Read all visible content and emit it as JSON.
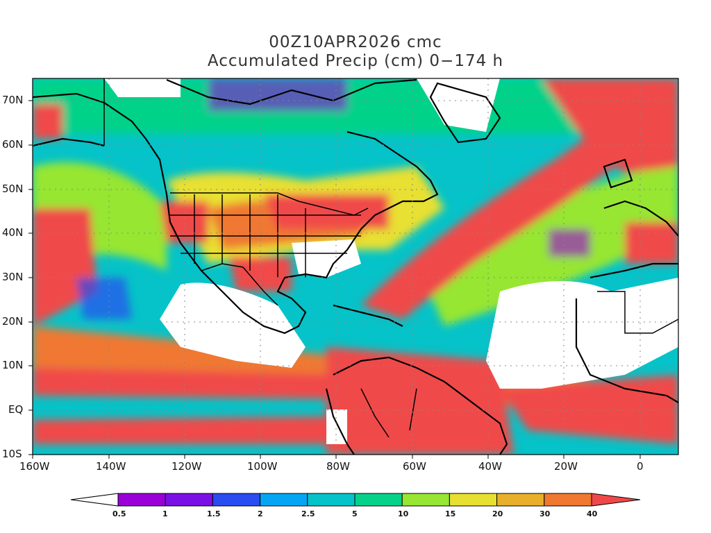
{
  "title": {
    "line1": "00Z10APR2026 cmc",
    "line2": "Accumulated Precip (cm) 0−174 h"
  },
  "map": {
    "projection": "lat-lon",
    "lon_range": [
      -160,
      10
    ],
    "lat_range": [
      -10,
      75
    ],
    "lat_labels": [
      "70N",
      "60N",
      "50N",
      "40N",
      "30N",
      "20N",
      "10N",
      "EQ",
      "10S"
    ],
    "lon_labels": [
      "160W",
      "140W",
      "120W",
      "100W",
      "80W",
      "60W",
      "40W",
      "20W",
      "0"
    ],
    "gridlines": "dotted"
  },
  "colorbar": {
    "levels": [
      "0.5",
      "1",
      "1.5",
      "2",
      "2.5",
      "5",
      "10",
      "15",
      "20",
      "30",
      "40"
    ],
    "colors": [
      "#ffffff",
      "#9a00d8",
      "#7a10e6",
      "#2a4cf0",
      "#05a5f5",
      "#05c3c8",
      "#05d28a",
      "#96e632",
      "#e8e030",
      "#e8b02a",
      "#f07830",
      "#f04848"
    ]
  }
}
